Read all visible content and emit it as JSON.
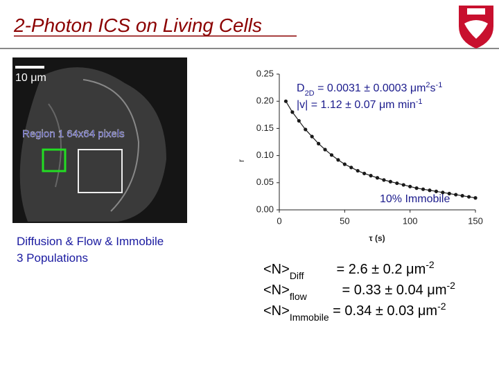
{
  "slide": {
    "title": "2-Photon ICS on Living Cells",
    "scale_bar": "10 μm",
    "region_label": "Region 1 64x64 pixels",
    "caption": [
      "Diffusion & Flow & Immobile",
      "3 Populations"
    ],
    "results": [
      [
        "<N>",
        "Diff",
        " = 2.6 ± 0.2 μm",
        "-2"
      ],
      [
        "<N>",
        "flow",
        " = 0.33 ± 0.04 μm",
        "-2"
      ],
      [
        "<N>",
        "Immobile",
        " = 0.34 ± 0.03 μm",
        "-2"
      ]
    ]
  },
  "chart_data": {
    "type": "line",
    "color": "#1a1a1a",
    "xlabel": "τ (s)",
    "ylabel": "r",
    "annotations": [
      [
        "D",
        "2D",
        " = 0.0031 ± 0.0003 μm",
        "2",
        "s",
        "-1"
      ],
      [
        "|v|  = 1.12 ± 0.07 μm min",
        "-1"
      ],
      "10% Immobile"
    ],
    "x": [
      5,
      10,
      15,
      20,
      25,
      30,
      35,
      40,
      45,
      50,
      55,
      60,
      65,
      70,
      75,
      80,
      85,
      90,
      95,
      100,
      105,
      110,
      115,
      120,
      125,
      130,
      135,
      140,
      145,
      150
    ],
    "values": [
      0.2,
      0.18,
      0.164,
      0.148,
      0.135,
      0.122,
      0.111,
      0.101,
      0.092,
      0.084,
      0.078,
      0.072,
      0.067,
      0.063,
      0.059,
      0.055,
      0.052,
      0.049,
      0.046,
      0.043,
      0.04,
      0.038,
      0.036,
      0.034,
      0.032,
      0.03,
      0.028,
      0.026,
      0.024,
      0.022
    ],
    "xlim": [
      0,
      150
    ],
    "xticks": [
      0,
      50,
      100,
      150
    ],
    "ylim": [
      0,
      0.25
    ],
    "yticks": [
      {
        "value": 0,
        "label": "0.00"
      },
      {
        "value": 0.05,
        "label": "0.05"
      },
      {
        "value": 0.1,
        "label": "0.10"
      },
      {
        "value": 0.15,
        "label": "0.15"
      },
      {
        "value": 0.2,
        "label": "0.20"
      },
      {
        "value": 0.25,
        "label": "0.25"
      }
    ]
  }
}
